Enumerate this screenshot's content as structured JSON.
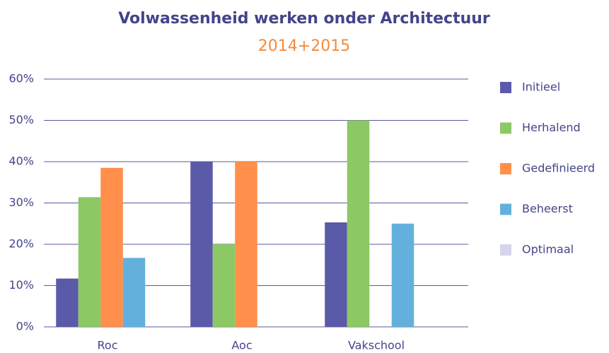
{
  "chart_data": {
    "type": "bar",
    "title": "Volwassenheid werken onder Architectuur",
    "subtitle": "2014+2015",
    "categories": [
      "Roc",
      "Aoc",
      "Vakschool"
    ],
    "series": [
      {
        "name": "Initieel",
        "color": "#5a5aa8",
        "values": [
          11.7,
          40,
          25.3
        ]
      },
      {
        "name": "Herhalend",
        "color": "#8cc864",
        "values": [
          31.4,
          20,
          50
        ]
      },
      {
        "name": "Gedefinieerd",
        "color": "#ff8f4a",
        "values": [
          38.5,
          40,
          0
        ]
      },
      {
        "name": "Beheerst",
        "color": "#64b0dc",
        "values": [
          16.7,
          0,
          25
        ]
      },
      {
        "name": "Optimaal",
        "color": "#d4d4ec",
        "values": [
          0,
          0,
          0
        ]
      }
    ],
    "ylim": [
      0,
      60
    ],
    "yticks": [
      {
        "value": 0,
        "label": "0%"
      },
      {
        "value": 10,
        "label": "10%"
      },
      {
        "value": 20,
        "label": "20%"
      },
      {
        "value": 30,
        "label": "30%"
      },
      {
        "value": 40,
        "label": "40%"
      },
      {
        "value": 50,
        "label": "50%"
      },
      {
        "value": 60,
        "label": "60%"
      }
    ],
    "grid": true,
    "legend": "right"
  }
}
